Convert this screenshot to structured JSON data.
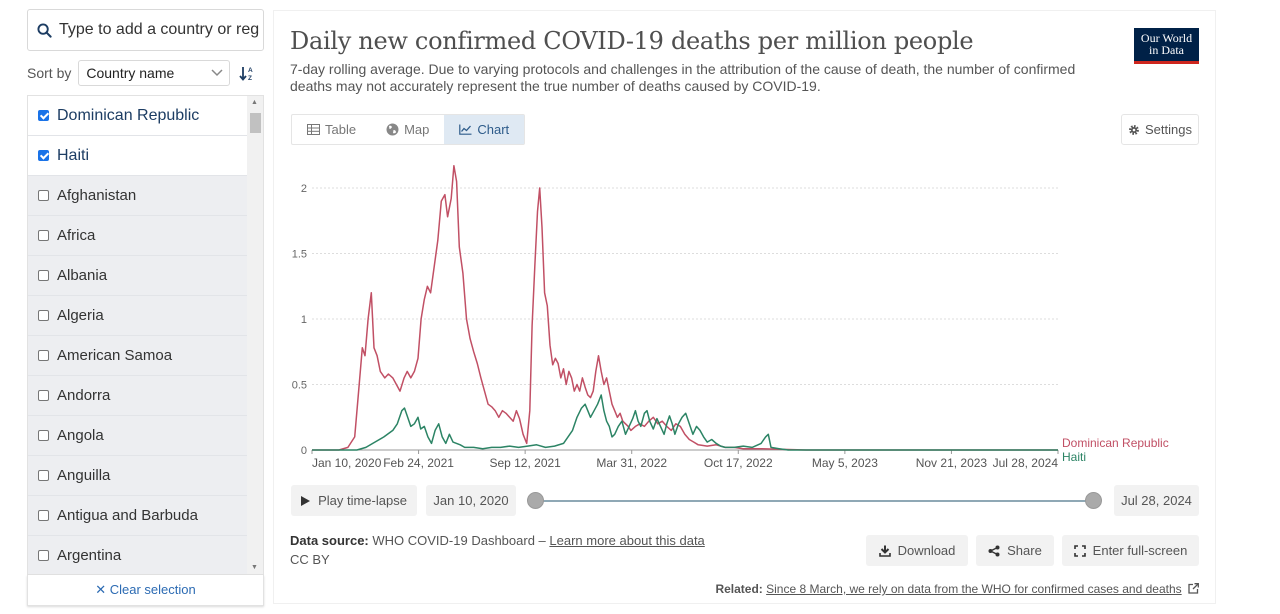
{
  "search": {
    "placeholder": "Type to add a country or region..."
  },
  "sort": {
    "label": "Sort by",
    "selected": "Country name"
  },
  "entities": [
    {
      "name": "Dominican Republic",
      "selected": true
    },
    {
      "name": "Haiti",
      "selected": true
    },
    {
      "name": "Afghanistan",
      "selected": false
    },
    {
      "name": "Africa",
      "selected": false
    },
    {
      "name": "Albania",
      "selected": false
    },
    {
      "name": "Algeria",
      "selected": false
    },
    {
      "name": "American Samoa",
      "selected": false
    },
    {
      "name": "Andorra",
      "selected": false
    },
    {
      "name": "Angola",
      "selected": false
    },
    {
      "name": "Anguilla",
      "selected": false
    },
    {
      "name": "Antigua and Barbuda",
      "selected": false
    },
    {
      "name": "Argentina",
      "selected": false
    }
  ],
  "clear_label": "✕ Clear selection",
  "header": {
    "title": "Daily new confirmed COVID-19 deaths per million people",
    "subtitle": "7-day rolling average. Due to varying protocols and challenges in the attribution of the cause of death, the number of confirmed deaths may not accurately represent the true number of deaths caused by COVID-19.",
    "logo_line1": "Our World",
    "logo_line2": "in Data"
  },
  "tabs": [
    {
      "label": "Table",
      "icon": "table-icon",
      "active": false
    },
    {
      "label": "Map",
      "icon": "globe-icon",
      "active": false
    },
    {
      "label": "Chart",
      "icon": "line-chart-icon",
      "active": true
    }
  ],
  "settings_label": "Settings",
  "timeline": {
    "play_label": "Play time-lapse",
    "start": "Jan 10, 2020",
    "end": "Jul 28, 2024"
  },
  "source": {
    "label": "Data source:",
    "text": "WHO COVID-19 Dashboard –",
    "link": "Learn more about this data",
    "license": "CC BY"
  },
  "actions": {
    "download": "Download",
    "share": "Share",
    "fullscreen": "Enter full-screen"
  },
  "related": {
    "label": "Related:",
    "link": "Since 8 March, we rely on data from the WHO for confirmed cases and deaths"
  },
  "colors": {
    "dominican_republic": "#c15065",
    "haiti": "#2c8465",
    "grid": "#dddddd",
    "axis": "#666666"
  },
  "chart_data": {
    "type": "line",
    "title": "Daily new confirmed COVID-19 deaths per million people",
    "xlabel": "",
    "ylabel": "",
    "ylim": [
      0,
      2
    ],
    "y_ticks": [
      0,
      0.5,
      1,
      1.5,
      2
    ],
    "x_tick_labels": [
      "Jan 10, 2020",
      "Feb 24, 2021",
      "Sep 12, 2021",
      "Mar 31, 2022",
      "Oct 17, 2022",
      "May 5, 2023",
      "Nov 21, 2023",
      "Jul 28, 2024"
    ],
    "x_unit": "days since Jan 10, 2020",
    "x_range": [
      0,
      1661
    ],
    "series": [
      {
        "name": "Dominican Republic",
        "color": "#c15065",
        "points": [
          [
            0,
            0
          ],
          [
            60,
            0
          ],
          [
            80,
            0.02
          ],
          [
            95,
            0.1
          ],
          [
            105,
            0.5
          ],
          [
            112,
            0.78
          ],
          [
            118,
            0.72
          ],
          [
            125,
            1.0
          ],
          [
            132,
            1.2
          ],
          [
            138,
            0.78
          ],
          [
            145,
            0.72
          ],
          [
            152,
            0.6
          ],
          [
            162,
            0.55
          ],
          [
            170,
            0.58
          ],
          [
            180,
            0.55
          ],
          [
            188,
            0.5
          ],
          [
            196,
            0.45
          ],
          [
            205,
            0.55
          ],
          [
            212,
            0.6
          ],
          [
            220,
            0.55
          ],
          [
            228,
            0.6
          ],
          [
            236,
            0.7
          ],
          [
            243,
            1.0
          ],
          [
            250,
            1.15
          ],
          [
            257,
            1.25
          ],
          [
            264,
            1.2
          ],
          [
            272,
            1.4
          ],
          [
            280,
            1.6
          ],
          [
            288,
            1.9
          ],
          [
            296,
            1.95
          ],
          [
            302,
            1.78
          ],
          [
            310,
            1.92
          ],
          [
            316,
            2.17
          ],
          [
            322,
            2.05
          ],
          [
            328,
            1.55
          ],
          [
            336,
            1.35
          ],
          [
            344,
            1.0
          ],
          [
            352,
            0.85
          ],
          [
            360,
            0.75
          ],
          [
            368,
            0.66
          ],
          [
            376,
            0.55
          ],
          [
            384,
            0.45
          ],
          [
            392,
            0.35
          ],
          [
            400,
            0.33
          ],
          [
            408,
            0.3
          ],
          [
            416,
            0.25
          ],
          [
            424,
            0.3
          ],
          [
            432,
            0.28
          ],
          [
            440,
            0.25
          ],
          [
            448,
            0.22
          ],
          [
            455,
            0.3
          ],
          [
            462,
            0.24
          ],
          [
            470,
            0.12
          ],
          [
            478,
            0.05
          ],
          [
            485,
            0.3
          ],
          [
            490,
            0.95
          ],
          [
            496,
            1.4
          ],
          [
            502,
            1.82
          ],
          [
            507,
            2.0
          ],
          [
            512,
            1.7
          ],
          [
            518,
            1.2
          ],
          [
            524,
            1.1
          ],
          [
            530,
            0.8
          ],
          [
            536,
            0.65
          ],
          [
            542,
            0.7
          ],
          [
            548,
            0.66
          ],
          [
            554,
            0.55
          ],
          [
            560,
            0.62
          ],
          [
            566,
            0.5
          ],
          [
            572,
            0.6
          ],
          [
            578,
            0.55
          ],
          [
            584,
            0.45
          ],
          [
            590,
            0.5
          ],
          [
            596,
            0.45
          ],
          [
            602,
            0.55
          ],
          [
            608,
            0.48
          ],
          [
            614,
            0.42
          ],
          [
            620,
            0.4
          ],
          [
            626,
            0.45
          ],
          [
            632,
            0.6
          ],
          [
            638,
            0.72
          ],
          [
            644,
            0.6
          ],
          [
            650,
            0.5
          ],
          [
            656,
            0.55
          ],
          [
            662,
            0.45
          ],
          [
            668,
            0.35
          ],
          [
            674,
            0.3
          ],
          [
            680,
            0.25
          ],
          [
            686,
            0.28
          ],
          [
            692,
            0.22
          ],
          [
            698,
            0.2
          ],
          [
            704,
            0.18
          ],
          [
            710,
            0.15
          ],
          [
            720,
            0.18
          ],
          [
            730,
            0.2
          ],
          [
            740,
            0.18
          ],
          [
            750,
            0.22
          ],
          [
            760,
            0.25
          ],
          [
            770,
            0.2
          ],
          [
            780,
            0.22
          ],
          [
            790,
            0.18
          ],
          [
            800,
            0.15
          ],
          [
            810,
            0.2
          ],
          [
            820,
            0.18
          ],
          [
            830,
            0.12
          ],
          [
            840,
            0.08
          ],
          [
            850,
            0.06
          ],
          [
            860,
            0.04
          ],
          [
            880,
            0.03
          ],
          [
            900,
            0.04
          ],
          [
            920,
            0.02
          ],
          [
            940,
            0.02
          ],
          [
            960,
            0.01
          ],
          [
            1000,
            0.01
          ],
          [
            1100,
            0
          ],
          [
            1200,
            0
          ],
          [
            1300,
            0
          ],
          [
            1400,
            0
          ],
          [
            1500,
            0
          ],
          [
            1661,
            0
          ]
        ]
      },
      {
        "name": "Haiti",
        "color": "#2c8465",
        "points": [
          [
            0,
            0
          ],
          [
            100,
            0
          ],
          [
            120,
            0.02
          ],
          [
            140,
            0.06
          ],
          [
            160,
            0.1
          ],
          [
            180,
            0.15
          ],
          [
            190,
            0.2
          ],
          [
            200,
            0.3
          ],
          [
            206,
            0.32
          ],
          [
            212,
            0.26
          ],
          [
            220,
            0.18
          ],
          [
            228,
            0.2
          ],
          [
            236,
            0.25
          ],
          [
            242,
            0.16
          ],
          [
            250,
            0.18
          ],
          [
            258,
            0.1
          ],
          [
            266,
            0.05
          ],
          [
            274,
            0.15
          ],
          [
            282,
            0.2
          ],
          [
            290,
            0.1
          ],
          [
            298,
            0.05
          ],
          [
            306,
            0.12
          ],
          [
            314,
            0.06
          ],
          [
            322,
            0.05
          ],
          [
            330,
            0.04
          ],
          [
            340,
            0.02
          ],
          [
            360,
            0.02
          ],
          [
            380,
            0.01
          ],
          [
            400,
            0.02
          ],
          [
            420,
            0.02
          ],
          [
            440,
            0.03
          ],
          [
            460,
            0.02
          ],
          [
            480,
            0.03
          ],
          [
            500,
            0.04
          ],
          [
            520,
            0.02
          ],
          [
            540,
            0.03
          ],
          [
            560,
            0.05
          ],
          [
            570,
            0.1
          ],
          [
            580,
            0.15
          ],
          [
            590,
            0.25
          ],
          [
            600,
            0.32
          ],
          [
            608,
            0.35
          ],
          [
            614,
            0.3
          ],
          [
            620,
            0.25
          ],
          [
            628,
            0.3
          ],
          [
            636,
            0.35
          ],
          [
            644,
            0.42
          ],
          [
            650,
            0.3
          ],
          [
            656,
            0.22
          ],
          [
            662,
            0.18
          ],
          [
            668,
            0.1
          ],
          [
            674,
            0.12
          ],
          [
            682,
            0.18
          ],
          [
            690,
            0.22
          ],
          [
            698,
            0.12
          ],
          [
            706,
            0.18
          ],
          [
            714,
            0.24
          ],
          [
            720,
            0.3
          ],
          [
            726,
            0.22
          ],
          [
            732,
            0.18
          ],
          [
            740,
            0.28
          ],
          [
            746,
            0.3
          ],
          [
            752,
            0.22
          ],
          [
            760,
            0.16
          ],
          [
            768,
            0.24
          ],
          [
            776,
            0.18
          ],
          [
            784,
            0.12
          ],
          [
            790,
            0.2
          ],
          [
            796,
            0.26
          ],
          [
            802,
            0.2
          ],
          [
            808,
            0.12
          ],
          [
            816,
            0.2
          ],
          [
            824,
            0.25
          ],
          [
            832,
            0.28
          ],
          [
            840,
            0.2
          ],
          [
            848,
            0.12
          ],
          [
            856,
            0.18
          ],
          [
            864,
            0.15
          ],
          [
            872,
            0.1
          ],
          [
            880,
            0.06
          ],
          [
            890,
            0.08
          ],
          [
            900,
            0.05
          ],
          [
            910,
            0.03
          ],
          [
            920,
            0.02
          ],
          [
            940,
            0.02
          ],
          [
            960,
            0.03
          ],
          [
            980,
            0.02
          ],
          [
            1000,
            0.05
          ],
          [
            1010,
            0.1
          ],
          [
            1016,
            0.12
          ],
          [
            1022,
            0.02
          ],
          [
            1040,
            0.01
          ],
          [
            1060,
            0
          ],
          [
            1200,
            0
          ],
          [
            1400,
            0
          ],
          [
            1661,
            0
          ]
        ]
      }
    ]
  }
}
